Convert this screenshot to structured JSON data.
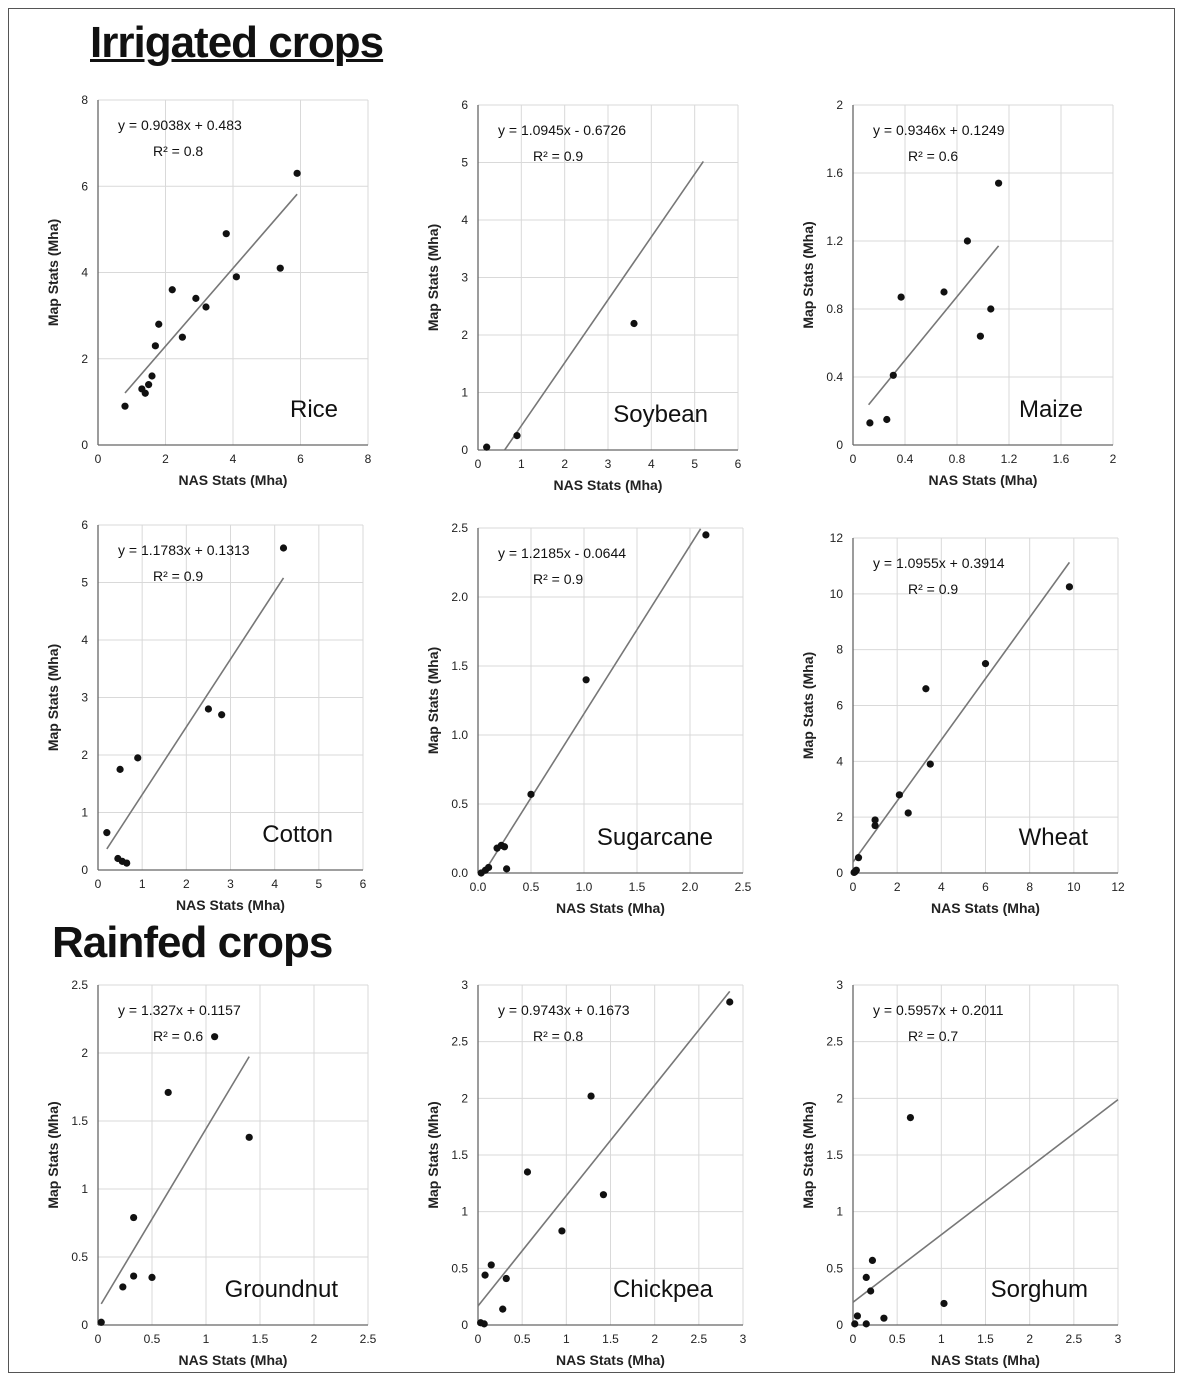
{
  "sections": {
    "irrigated_title": "Irrigated crops",
    "rainfed_title": "Rainfed crops"
  },
  "colors": {
    "grid": "#d9d9d9",
    "axis": "#666666",
    "trend": "#777777",
    "point": "#111111"
  },
  "chart_data": [
    {
      "type": "scatter",
      "crop": "Rice",
      "xlabel": "NAS Stats (Mha)",
      "ylabel": "Map Stats (Mha)",
      "equation": "y = 0.9038x + 0.483",
      "r2": "R² = 0.8",
      "xlim": [
        0,
        8
      ],
      "ylim": [
        0,
        8
      ],
      "xticks": [
        0,
        2,
        4,
        6,
        8
      ],
      "yticks": [
        0,
        2,
        4,
        6,
        8
      ],
      "xticklabels": [
        "0",
        "2",
        "4",
        "6",
        "8"
      ],
      "yticklabels": [
        "0",
        "2",
        "4",
        "6",
        "8"
      ],
      "trend": {
        "slope": 0.9038,
        "intercept": 0.483,
        "x": [
          0.8,
          5.9
        ]
      },
      "points": [
        [
          0.8,
          0.9
        ],
        [
          1.3,
          1.3
        ],
        [
          1.4,
          1.2
        ],
        [
          1.5,
          1.4
        ],
        [
          1.6,
          1.6
        ],
        [
          1.7,
          2.3
        ],
        [
          1.8,
          2.8
        ],
        [
          2.2,
          3.6
        ],
        [
          2.5,
          2.5
        ],
        [
          2.9,
          3.4
        ],
        [
          3.2,
          3.2
        ],
        [
          3.8,
          4.9
        ],
        [
          4.1,
          3.9
        ],
        [
          5.4,
          4.1
        ],
        [
          5.9,
          6.3
        ]
      ]
    },
    {
      "type": "scatter",
      "crop": "Soybean",
      "xlabel": "NAS Stats (Mha)",
      "ylabel": "Map Stats (Mha)",
      "equation": "y = 1.0945x - 0.6726",
      "r2": "R² = 0.9",
      "xlim": [
        0,
        6
      ],
      "ylim": [
        0,
        6
      ],
      "xticks": [
        0,
        1,
        2,
        3,
        4,
        5,
        6
      ],
      "yticks": [
        0,
        1,
        2,
        3,
        4,
        5,
        6
      ],
      "xticklabels": [
        "0",
        "1",
        "2",
        "3",
        "4",
        "5",
        "6"
      ],
      "yticklabels": [
        "0",
        "1",
        "2",
        "3",
        "4",
        "5",
        "6"
      ],
      "trend": {
        "slope": 1.0945,
        "intercept": -0.6726,
        "x": [
          0.615,
          5.2
        ]
      },
      "points": [
        [
          0.2,
          0.05
        ],
        [
          0.9,
          0.25
        ],
        [
          3.6,
          2.2
        ]
      ]
    },
    {
      "type": "scatter",
      "crop": "Maize",
      "xlabel": "NAS Stats (Mha)",
      "ylabel": "Map Stats (Mha)",
      "equation": "y = 0.9346x + 0.1249",
      "r2": "R² = 0.6",
      "xlim": [
        0,
        2
      ],
      "ylim": [
        0,
        2
      ],
      "xticks": [
        0,
        0.4,
        0.8,
        1.2,
        1.6,
        2
      ],
      "yticks": [
        0,
        0.4,
        0.8,
        1.2,
        1.6,
        2
      ],
      "xticklabels": [
        "0",
        "0.4",
        "0.8",
        "1.2",
        "1.6",
        "2"
      ],
      "yticklabels": [
        "0",
        "0.4",
        "0.8",
        "1.2",
        "1.6",
        "2"
      ],
      "trend": {
        "slope": 0.9346,
        "intercept": 0.1249,
        "x": [
          0.12,
          1.12
        ]
      },
      "points": [
        [
          0.13,
          0.13
        ],
        [
          0.26,
          0.15
        ],
        [
          0.31,
          0.41
        ],
        [
          0.37,
          0.87
        ],
        [
          0.7,
          0.9
        ],
        [
          0.88,
          1.2
        ],
        [
          0.98,
          0.64
        ],
        [
          1.06,
          0.8
        ],
        [
          1.12,
          1.54
        ]
      ]
    },
    {
      "type": "scatter",
      "crop": "Cotton",
      "xlabel": "NAS Stats (Mha)",
      "ylabel": "Map Stats (Mha)",
      "equation": "y = 1.1783x + 0.1313",
      "r2": "R² = 0.9",
      "xlim": [
        0,
        6
      ],
      "ylim": [
        0,
        6
      ],
      "xticks": [
        0,
        1,
        2,
        3,
        4,
        5,
        6
      ],
      "yticks": [
        0,
        1,
        2,
        3,
        4,
        5,
        6
      ],
      "xticklabels": [
        "0",
        "1",
        "2",
        "3",
        "4",
        "5",
        "6"
      ],
      "yticklabels": [
        "0",
        "1",
        "2",
        "3",
        "4",
        "5",
        "6"
      ],
      "trend": {
        "slope": 1.1783,
        "intercept": 0.1313,
        "x": [
          0.2,
          4.2
        ]
      },
      "points": [
        [
          0.2,
          0.65
        ],
        [
          0.45,
          0.2
        ],
        [
          0.55,
          0.15
        ],
        [
          0.65,
          0.12
        ],
        [
          0.5,
          1.75
        ],
        [
          0.9,
          1.95
        ],
        [
          2.5,
          2.8
        ],
        [
          2.8,
          2.7
        ],
        [
          4.2,
          5.6
        ]
      ]
    },
    {
      "type": "scatter",
      "crop": "Sugarcane",
      "xlabel": "NAS Stats (Mha)",
      "ylabel": "Map Stats (Mha)",
      "equation": "y = 1.2185x - 0.0644",
      "r2": "R² = 0.9",
      "xlim": [
        0,
        2.5
      ],
      "ylim": [
        0,
        2.5
      ],
      "xticks": [
        0,
        0.5,
        1,
        1.5,
        2,
        2.5
      ],
      "yticks": [
        0,
        0.5,
        1,
        1.5,
        2,
        2.5
      ],
      "xticklabels": [
        "0.0",
        "0.5",
        "1.0",
        "1.5",
        "2.0",
        "2.5"
      ],
      "yticklabels": [
        "0.0",
        "0.5",
        "1.0",
        "1.5",
        "2.0",
        "2.5"
      ],
      "trend": {
        "slope": 1.2185,
        "intercept": -0.0644,
        "x": [
          0.053,
          2.1
        ]
      },
      "points": [
        [
          0.03,
          0.0
        ],
        [
          0.07,
          0.02
        ],
        [
          0.1,
          0.04
        ],
        [
          0.18,
          0.18
        ],
        [
          0.22,
          0.2
        ],
        [
          0.25,
          0.19
        ],
        [
          0.27,
          0.03
        ],
        [
          0.5,
          0.57
        ],
        [
          1.02,
          1.4
        ],
        [
          2.15,
          2.45
        ]
      ]
    },
    {
      "type": "scatter",
      "crop": "Wheat",
      "xlabel": "NAS Stats (Mha)",
      "ylabel": "Map Stats (Mha)",
      "equation": "y = 1.0955x + 0.3914",
      "r2": "R² = 0.9",
      "xlim": [
        0,
        12
      ],
      "ylim": [
        0,
        12
      ],
      "xticks": [
        0,
        2,
        4,
        6,
        8,
        10,
        12
      ],
      "yticks": [
        0,
        2,
        4,
        6,
        8,
        10,
        12
      ],
      "xticklabels": [
        "0",
        "2",
        "4",
        "6",
        "8",
        "10",
        "12"
      ],
      "yticklabels": [
        "0",
        "2",
        "4",
        "6",
        "8",
        "10",
        "12"
      ],
      "trend": {
        "slope": 1.0955,
        "intercept": 0.3914,
        "x": [
          0,
          9.8
        ]
      },
      "points": [
        [
          0.05,
          0.02
        ],
        [
          0.1,
          0.05
        ],
        [
          0.15,
          0.1
        ],
        [
          0.25,
          0.55
        ],
        [
          1.0,
          1.7
        ],
        [
          1.0,
          1.9
        ],
        [
          2.1,
          2.8
        ],
        [
          2.5,
          2.15
        ],
        [
          3.3,
          6.6
        ],
        [
          3.5,
          3.9
        ],
        [
          6.0,
          7.5
        ],
        [
          9.8,
          10.25
        ]
      ]
    },
    {
      "type": "scatter",
      "crop": "Groundnut",
      "xlabel": "NAS Stats (Mha)",
      "ylabel": "Map Stats (Mha)",
      "equation": "y = 1.327x + 0.1157",
      "r2": "R² = 0.6",
      "xlim": [
        0,
        2.5
      ],
      "ylim": [
        0,
        2.5
      ],
      "xticks": [
        0,
        0.5,
        1,
        1.5,
        2,
        2.5
      ],
      "yticks": [
        0,
        0.5,
        1,
        1.5,
        2,
        2.5
      ],
      "xticklabels": [
        "0",
        "0.5",
        "1",
        "1.5",
        "2",
        "2.5"
      ],
      "yticklabels": [
        "0",
        "0.5",
        "1",
        "1.5",
        "2",
        "2.5"
      ],
      "trend": {
        "slope": 1.327,
        "intercept": 0.1157,
        "x": [
          0.03,
          1.4
        ]
      },
      "points": [
        [
          0.03,
          0.02
        ],
        [
          0.23,
          0.28
        ],
        [
          0.33,
          0.36
        ],
        [
          0.33,
          0.79
        ],
        [
          0.5,
          0.35
        ],
        [
          0.65,
          1.71
        ],
        [
          1.08,
          2.12
        ],
        [
          1.4,
          1.38
        ]
      ]
    },
    {
      "type": "scatter",
      "crop": "Chickpea",
      "xlabel": "NAS Stats (Mha)",
      "ylabel": "Map Stats (Mha)",
      "equation": "y = 0.9743x + 0.1673",
      "r2": "R² = 0.8",
      "xlim": [
        0,
        3
      ],
      "ylim": [
        0,
        3
      ],
      "xticks": [
        0,
        0.5,
        1,
        1.5,
        2,
        2.5,
        3
      ],
      "yticks": [
        0,
        0.5,
        1,
        1.5,
        2,
        2.5,
        3
      ],
      "xticklabels": [
        "0",
        "0.5",
        "1",
        "1.5",
        "2",
        "2.5",
        "3"
      ],
      "yticklabels": [
        "0",
        "0.5",
        "1",
        "1.5",
        "2",
        "2.5",
        "3"
      ],
      "trend": {
        "slope": 0.9743,
        "intercept": 0.1673,
        "x": [
          0,
          2.85
        ]
      },
      "points": [
        [
          0.03,
          0.02
        ],
        [
          0.07,
          0.01
        ],
        [
          0.08,
          0.44
        ],
        [
          0.15,
          0.53
        ],
        [
          0.28,
          0.14
        ],
        [
          0.32,
          0.41
        ],
        [
          0.56,
          1.35
        ],
        [
          0.95,
          0.83
        ],
        [
          1.28,
          2.02
        ],
        [
          1.42,
          1.15
        ],
        [
          2.85,
          2.85
        ]
      ]
    },
    {
      "type": "scatter",
      "crop": "Sorghum",
      "xlabel": "NAS Stats (Mha)",
      "ylabel": "Map Stats (Mha)",
      "equation": "y = 0.5957x + 0.2011",
      "r2": "R² = 0.7",
      "xlim": [
        0,
        3
      ],
      "ylim": [
        0,
        3
      ],
      "xticks": [
        0,
        0.5,
        1,
        1.5,
        2,
        2.5,
        3
      ],
      "yticks": [
        0,
        0.5,
        1,
        1.5,
        2,
        2.5,
        3
      ],
      "xticklabels": [
        "0",
        "0.5",
        "1",
        "1.5",
        "2",
        "2.5",
        "3"
      ],
      "yticklabels": [
        "0",
        "0.5",
        "1",
        "1.5",
        "2",
        "2.5",
        "3"
      ],
      "trend": {
        "slope": 0.5957,
        "intercept": 0.2011,
        "x": [
          0,
          3
        ]
      },
      "points": [
        [
          0.02,
          0.01
        ],
        [
          0.05,
          0.08
        ],
        [
          0.15,
          0.01
        ],
        [
          0.15,
          0.42
        ],
        [
          0.2,
          0.3
        ],
        [
          0.22,
          0.57
        ],
        [
          0.35,
          0.06
        ],
        [
          0.65,
          1.83
        ],
        [
          1.03,
          0.19
        ]
      ]
    }
  ]
}
